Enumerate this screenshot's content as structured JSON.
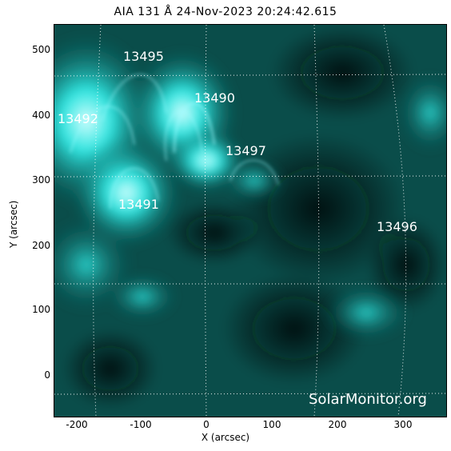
{
  "title": "AIA 131 Å 24-Nov-2023 20:24:42.615",
  "x_axis": {
    "label": "X (arcsec)",
    "ticks": [
      "-200",
      "-100",
      "0",
      "100",
      "200",
      "300"
    ]
  },
  "y_axis": {
    "label": "Y (arcsec)",
    "ticks": [
      "500",
      "400",
      "300",
      "200",
      "100",
      "0"
    ]
  },
  "regions": [
    "13495",
    "13490",
    "13492",
    "13497",
    "13491",
    "13496"
  ],
  "watermark": "SolarMonitor.org",
  "colors": {
    "background": "#ffffff",
    "sun_dark": "#032a28",
    "sun_bright": "#39f0f0",
    "label": "#ffffff"
  }
}
